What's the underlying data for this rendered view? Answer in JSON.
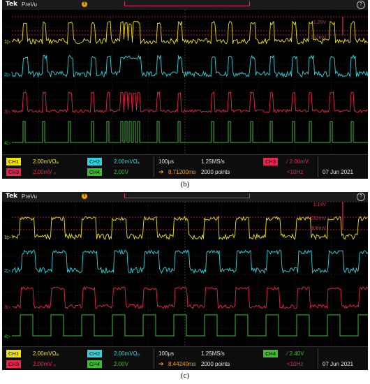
{
  "panels": [
    {
      "id": "b",
      "caption": "(b)",
      "brand": "Tek",
      "mode": "PreVu",
      "cursor_readouts": [
        "1.26V",
        "232mV"
      ],
      "status": {
        "ch1": {
          "label": "CH1",
          "value": "2.00mVΩᵢᵥ"
        },
        "ch2": {
          "label": "CH2",
          "value": "2.00mVΩᵢᵥ"
        },
        "ch3": {
          "label": "CH3",
          "value": "2.00mV ₐ"
        },
        "ch4": {
          "label": "CH4",
          "value": "2.00V"
        },
        "timebase": "100µs",
        "sample_rate": "1.25MS/s",
        "trigger_source": "CH3",
        "trigger_level": "2.00mV",
        "trigger_pos": "8.71200ms",
        "points": "2000 points",
        "freq": "<10Hz",
        "date": "07 Jun 2021"
      }
    },
    {
      "id": "c",
      "caption": "(c)",
      "brand": "Tek",
      "mode": "PreVu",
      "cursor_readouts": [
        "1.14V",
        "232mV",
        "908mV"
      ],
      "status": {
        "ch1": {
          "label": "CH1",
          "value": "2.00mVΩᵢᵥ"
        },
        "ch2": {
          "label": "CH2",
          "value": "2.00mVΩᵢᵥ"
        },
        "ch3": {
          "label": "CH3",
          "value": "2.00mV ₐ"
        },
        "ch4": {
          "label": "CH4",
          "value": "2.00V"
        },
        "timebase": "100µs",
        "sample_rate": "1.25MS/s",
        "trigger_source": "CH4",
        "trigger_level": "2.40V",
        "trigger_pos": "8.44240ms",
        "points": "2000 points",
        "freq": "<10Hz",
        "date": "07 Jun 2021"
      }
    }
  ],
  "colors": {
    "ch1": "#f2e600",
    "ch2": "#29d7e0",
    "ch3": "#e8254f",
    "ch4": "#3dbb2e",
    "grid": "#3a3a3a",
    "cursor": "#e8254f"
  },
  "channel_markers": [
    "1",
    "2",
    "3",
    "4"
  ],
  "icons": [
    "trigger-position-icon",
    "help-icon",
    "cursor-arrow-icon"
  ]
}
